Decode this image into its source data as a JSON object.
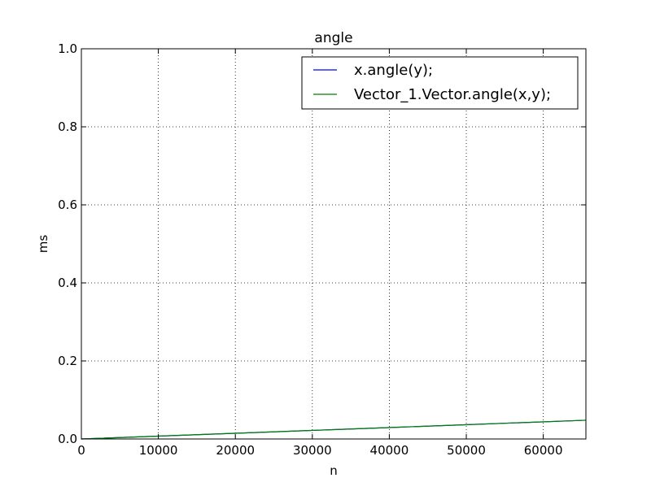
{
  "chart_data": {
    "type": "line",
    "title": "angle",
    "xlabel": "n",
    "ylabel": "ms",
    "xlim": [
      0,
      65536
    ],
    "ylim": [
      0.0,
      1.0
    ],
    "xticks": [
      {
        "value": 0,
        "label": "0"
      },
      {
        "value": 10000,
        "label": "10000"
      },
      {
        "value": 20000,
        "label": "20000"
      },
      {
        "value": 30000,
        "label": "30000"
      },
      {
        "value": 40000,
        "label": "40000"
      },
      {
        "value": 50000,
        "label": "50000"
      },
      {
        "value": 60000,
        "label": "60000"
      }
    ],
    "yticks": [
      {
        "value": 0.0,
        "label": "0.0"
      },
      {
        "value": 0.2,
        "label": "0.2"
      },
      {
        "value": 0.4,
        "label": "0.4"
      },
      {
        "value": 0.6,
        "label": "0.6"
      },
      {
        "value": 0.8,
        "label": "0.8"
      },
      {
        "value": 1.0,
        "label": "1.0"
      }
    ],
    "grid": true,
    "legend": "top-right",
    "series": [
      {
        "name": "x.angle(y);",
        "color": "#0000ff",
        "x": [
          0,
          8192,
          16384,
          24576,
          32768,
          40960,
          49152,
          57344,
          65536
        ],
        "y": [
          0.0,
          0.006,
          0.012,
          0.018,
          0.024,
          0.03,
          0.036,
          0.042,
          0.048
        ]
      },
      {
        "name": "Vector_1.Vector.angle(x,y);",
        "color": "#008000",
        "x": [
          0,
          8192,
          16384,
          24576,
          32768,
          40960,
          49152,
          57344,
          65536
        ],
        "y": [
          0.0,
          0.006,
          0.012,
          0.018,
          0.024,
          0.03,
          0.036,
          0.042,
          0.048
        ]
      }
    ]
  }
}
